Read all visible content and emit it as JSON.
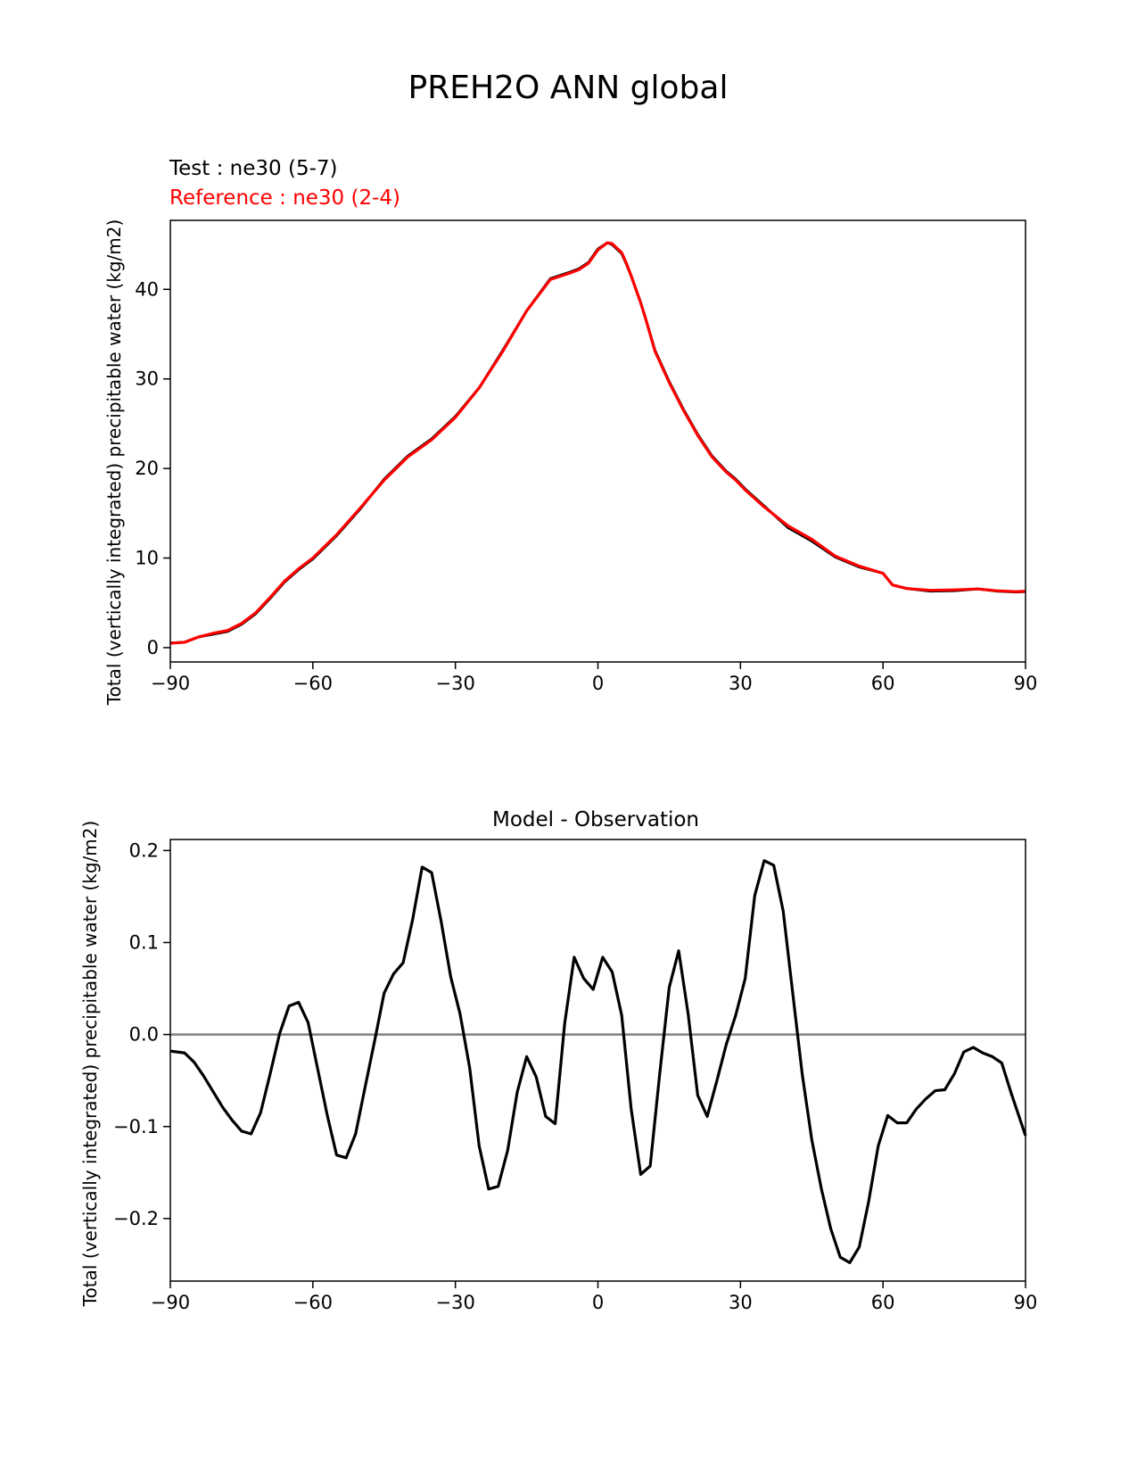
{
  "figure": {
    "title": "PREH2O ANN global"
  },
  "chart_data": [
    {
      "type": "line",
      "test_label": "Test : ne30 (5-7)",
      "reference_label": "Reference : ne30 (2-4)",
      "title": "",
      "xlabel": "",
      "ylabel": "Total (vertically integrated) precipitable water (kg/m2)",
      "xlim": [
        -90,
        90
      ],
      "ylim": [
        -1.6,
        47.7
      ],
      "xticks": [
        -90,
        -60,
        -30,
        0,
        30,
        60,
        90
      ],
      "xtick_labels": [
        "−90",
        "−60",
        "−30",
        "0",
        "30",
        "60",
        "90"
      ],
      "yticks": [
        0,
        10,
        20,
        30,
        40
      ],
      "ytick_labels": [
        "0",
        "10",
        "20",
        "30",
        "40"
      ],
      "grid": false,
      "colors": {
        "test": "#000000",
        "reference": "#ff0000"
      },
      "x": [
        -90,
        -87,
        -84,
        -81,
        -78,
        -75,
        -72,
        -69,
        -66,
        -63,
        -60,
        -55,
        -50,
        -45,
        -40,
        -35,
        -30,
        -25,
        -20,
        -15,
        -10,
        -6,
        -4,
        -2,
        0,
        2,
        3,
        5,
        6,
        7,
        8,
        9,
        10,
        12,
        15,
        18,
        21,
        24,
        27,
        29,
        31,
        35,
        40,
        45,
        50,
        55,
        60,
        62,
        65,
        70,
        75,
        80,
        84,
        88,
        90
      ],
      "series": [
        {
          "name": "Test : ne30 (5-7)",
          "role": "test",
          "values": [
            0.5,
            0.6,
            1.2,
            1.5,
            1.8,
            2.6,
            3.8,
            5.5,
            7.3,
            8.7,
            9.9,
            12.5,
            15.5,
            18.8,
            21.4,
            23.3,
            25.8,
            29.0,
            33.2,
            37.6,
            41.2,
            41.9,
            42.3,
            43.0,
            44.5,
            45.2,
            45.0,
            44.0,
            42.8,
            41.5,
            40.0,
            38.5,
            36.8,
            33.2,
            29.7,
            26.6,
            23.8,
            21.4,
            19.7,
            18.8,
            17.7,
            15.8,
            13.4,
            11.9,
            10.1,
            9.0,
            8.3,
            7.0,
            6.6,
            6.3,
            6.35,
            6.55,
            6.3,
            6.2,
            6.25
          ]
        },
        {
          "name": "Reference : ne30 (2-4)",
          "role": "reference",
          "values": [
            0.5,
            0.6,
            1.2,
            1.6,
            1.9,
            2.7,
            3.9,
            5.6,
            7.4,
            8.8,
            10.0,
            12.6,
            15.6,
            18.7,
            21.3,
            23.2,
            25.7,
            29.0,
            33.1,
            37.6,
            41.1,
            41.8,
            42.2,
            42.9,
            44.4,
            45.2,
            45.1,
            44.1,
            42.9,
            41.5,
            40.0,
            38.5,
            36.8,
            33.1,
            29.6,
            26.5,
            23.7,
            21.3,
            19.6,
            18.7,
            17.6,
            15.7,
            13.6,
            12.1,
            10.2,
            9.1,
            8.3,
            7.0,
            6.6,
            6.4,
            6.45,
            6.55,
            6.35,
            6.25,
            6.3
          ]
        }
      ]
    },
    {
      "type": "line",
      "title": "Model - Observation",
      "xlabel": "",
      "ylabel": "Total (vertically integrated) precipitable water (kg/m2)",
      "xlim": [
        -90,
        90
      ],
      "ylim": [
        -0.268,
        0.212
      ],
      "xticks": [
        -90,
        -60,
        -30,
        0,
        30,
        60,
        90
      ],
      "xtick_labels": [
        "−90",
        "−60",
        "−30",
        "0",
        "30",
        "60",
        "90"
      ],
      "yticks": [
        -0.2,
        -0.1,
        0.0,
        0.1,
        0.2
      ],
      "ytick_labels": [
        "−0.2",
        "−0.1",
        "0.0",
        "0.1",
        "0.2"
      ],
      "grid": false,
      "zero_line": 0,
      "colors": {
        "diff": "#000000",
        "zero": "#808080"
      },
      "x": [
        -90,
        -87,
        -85,
        -83,
        -81,
        -79,
        -77,
        -75,
        -73,
        -71,
        -69,
        -67,
        -65,
        -63,
        -61,
        -59,
        -57,
        -55,
        -53,
        -51,
        -49,
        -47,
        -45,
        -43,
        -41,
        -39,
        -37,
        -35,
        -33,
        -31,
        -29,
        -27,
        -25,
        -23,
        -21,
        -19,
        -17,
        -15,
        -13,
        -11,
        -9,
        -7,
        -5,
        -3,
        -1,
        1,
        3,
        5,
        7,
        9,
        11,
        13,
        15,
        17,
        19,
        21,
        23,
        25,
        27,
        29,
        31,
        33,
        35,
        37,
        39,
        41,
        43,
        45,
        47,
        49,
        51,
        53,
        55,
        57,
        59,
        61,
        63,
        65,
        67,
        69,
        71,
        73,
        75,
        77,
        79,
        81,
        83,
        85,
        87,
        90
      ],
      "series": [
        {
          "name": "",
          "values": [
            -0.018,
            -0.02,
            -0.03,
            -0.045,
            -0.062,
            -0.079,
            -0.093,
            -0.105,
            -0.108,
            -0.085,
            -0.043,
            0.001,
            0.031,
            0.035,
            0.013,
            -0.037,
            -0.087,
            -0.131,
            -0.134,
            -0.108,
            -0.057,
            -0.007,
            0.045,
            0.066,
            0.078,
            0.125,
            0.182,
            0.176,
            0.123,
            0.063,
            0.022,
            -0.036,
            -0.121,
            -0.168,
            -0.165,
            -0.126,
            -0.063,
            -0.024,
            -0.046,
            -0.089,
            -0.097,
            0.012,
            0.084,
            0.061,
            0.049,
            0.084,
            0.068,
            0.021,
            -0.081,
            -0.152,
            -0.143,
            -0.043,
            0.051,
            0.091,
            0.022,
            -0.066,
            -0.089,
            -0.051,
            -0.011,
            0.021,
            0.061,
            0.151,
            0.189,
            0.184,
            0.134,
            0.045,
            -0.043,
            -0.114,
            -0.167,
            -0.211,
            -0.242,
            -0.248,
            -0.231,
            -0.181,
            -0.121,
            -0.088,
            -0.096,
            -0.096,
            -0.081,
            -0.07,
            -0.061,
            -0.06,
            -0.043,
            -0.019,
            -0.014,
            -0.02,
            -0.024,
            -0.031,
            -0.064,
            -0.11
          ]
        }
      ]
    }
  ]
}
